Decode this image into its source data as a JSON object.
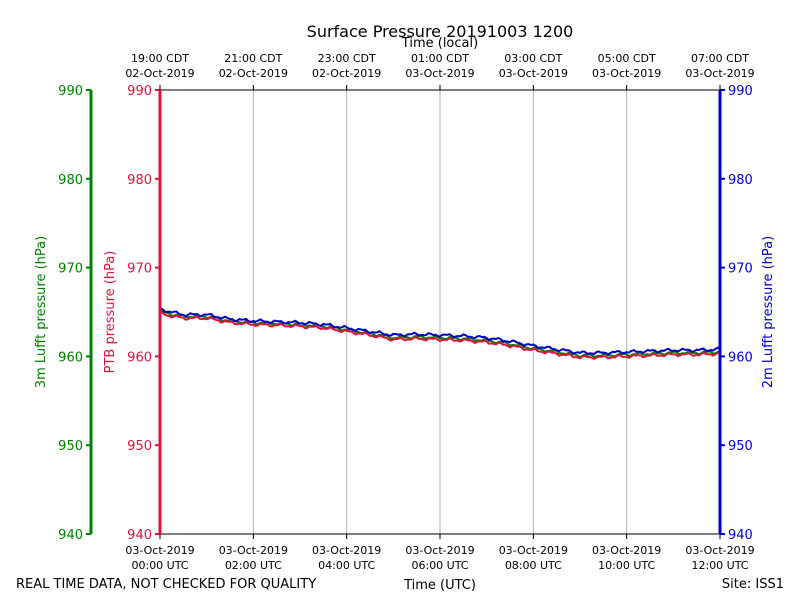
{
  "chart_data": {
    "type": "line",
    "title": "Surface Pressure 20191003 1200",
    "top_axis_label": "Time (local)",
    "bottom_axis_label": "Time (UTC)",
    "left_axis_label": "3m Lufft pressure (hPa)",
    "inner_left_axis_label": "PTB pressure (hPa)",
    "right_axis_label": "2m Lufft pressure (hPa)",
    "footer_left": "REAL TIME DATA, NOT CHECKED FOR QUALITY",
    "footer_right": "Site: ISS1",
    "ylim": [
      940,
      990
    ],
    "y_ticks": [
      "990",
      "980",
      "970",
      "960",
      "950",
      "940"
    ],
    "xlim_hours": [
      0,
      12
    ],
    "x_ticks": [
      {
        "hour": 0,
        "utc_date": "03-Oct-2019",
        "utc_time": "00:00 UTC",
        "local_time": "19:00 CDT",
        "local_date": "02-Oct-2019"
      },
      {
        "hour": 2,
        "utc_date": "03-Oct-2019",
        "utc_time": "02:00 UTC",
        "local_time": "21:00 CDT",
        "local_date": "02-Oct-2019"
      },
      {
        "hour": 4,
        "utc_date": "03-Oct-2019",
        "utc_time": "04:00 UTC",
        "local_time": "23:00 CDT",
        "local_date": "02-Oct-2019"
      },
      {
        "hour": 6,
        "utc_date": "03-Oct-2019",
        "utc_time": "06:00 UTC",
        "local_time": "01:00 CDT",
        "local_date": "03-Oct-2019"
      },
      {
        "hour": 8,
        "utc_date": "03-Oct-2019",
        "utc_time": "08:00 UTC",
        "local_time": "03:00 CDT",
        "local_date": "03-Oct-2019"
      },
      {
        "hour": 10,
        "utc_date": "03-Oct-2019",
        "utc_time": "10:00 UTC",
        "local_time": "05:00 CDT",
        "local_date": "03-Oct-2019"
      },
      {
        "hour": 12,
        "utc_date": "03-Oct-2019",
        "utc_time": "12:00 UTC",
        "local_time": "07:00 CDT",
        "local_date": "03-Oct-2019"
      }
    ],
    "grid": "vertical",
    "colors": {
      "left_axis": "#008000",
      "inner_left_axis": "#dc143c",
      "right_axis": "#0000cd",
      "grid": "#b0b0b0"
    },
    "series": [
      {
        "name": "3m Lufft pressure",
        "color": "#008000",
        "x": [
          0,
          0.5,
          1,
          1.5,
          2,
          2.5,
          3,
          3.5,
          4,
          4.5,
          5,
          5.5,
          6,
          6.5,
          7,
          7.5,
          8,
          8.5,
          9,
          9.5,
          10,
          10.5,
          11,
          11.5,
          12
        ],
        "values": [
          965.0,
          964.5,
          964.5,
          964.0,
          963.8,
          963.7,
          963.6,
          963.4,
          963.0,
          962.6,
          962.1,
          962.2,
          962.1,
          962.0,
          961.8,
          961.4,
          960.9,
          960.5,
          960.1,
          960.1,
          960.2,
          960.3,
          960.4,
          960.4,
          960.5
        ]
      },
      {
        "name": "PTB pressure",
        "color": "#dc143c",
        "x": [
          0,
          0.5,
          1,
          1.5,
          2,
          2.5,
          3,
          3.5,
          4,
          4.5,
          5,
          5.5,
          6,
          6.5,
          7,
          7.5,
          8,
          8.5,
          9,
          9.5,
          10,
          10.5,
          11,
          11.5,
          12
        ],
        "values": [
          964.8,
          964.3,
          964.3,
          963.8,
          963.6,
          963.5,
          963.4,
          963.2,
          962.8,
          962.4,
          961.9,
          962.0,
          961.9,
          961.8,
          961.6,
          961.2,
          960.7,
          960.3,
          959.9,
          959.9,
          960.0,
          960.1,
          960.2,
          960.2,
          960.3
        ]
      },
      {
        "name": "2m Lufft pressure",
        "color": "#0000cd",
        "x": [
          0,
          0.5,
          1,
          1.5,
          2,
          2.5,
          3,
          3.5,
          4,
          4.5,
          5,
          5.5,
          6,
          6.5,
          7,
          7.5,
          8,
          8.5,
          9,
          9.5,
          10,
          10.5,
          11,
          11.5,
          12
        ],
        "values": [
          965.3,
          964.7,
          964.7,
          964.2,
          964.0,
          963.9,
          963.8,
          963.6,
          963.2,
          962.8,
          962.4,
          962.5,
          962.4,
          962.3,
          962.1,
          961.7,
          961.2,
          960.8,
          960.4,
          960.4,
          960.5,
          960.6,
          960.7,
          960.7,
          960.8
        ]
      }
    ]
  }
}
